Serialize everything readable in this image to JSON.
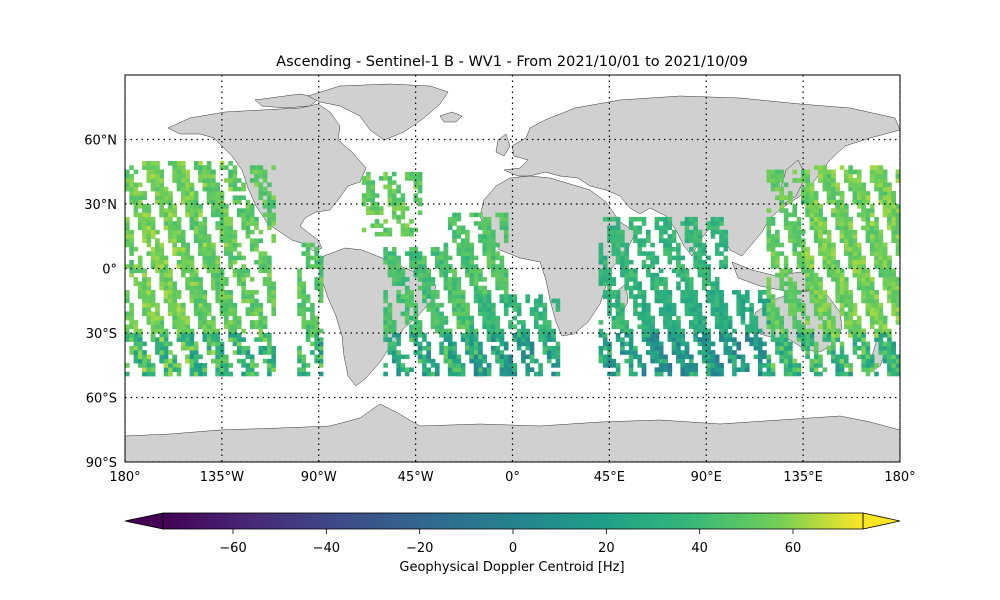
{
  "map": {
    "title": "Ascending - Sentinel-1 B - WV1 - From 2021/10/01 to 2021/10/09",
    "projection": "equirectangular",
    "lon_range": [
      -180,
      180
    ],
    "lat_range": [
      -90,
      90
    ],
    "land_color": "#d0d0d0",
    "coastline_color": "#333333",
    "gridlines": "dotted",
    "lon_ticks": [
      {
        "value": -180,
        "label": "180°"
      },
      {
        "value": -135,
        "label": "135°W"
      },
      {
        "value": -90,
        "label": "90°W"
      },
      {
        "value": -45,
        "label": "45°W"
      },
      {
        "value": 0,
        "label": "0°"
      },
      {
        "value": 45,
        "label": "45°E"
      },
      {
        "value": 90,
        "label": "90°E"
      },
      {
        "value": 135,
        "label": "135°E"
      },
      {
        "value": 180,
        "label": "180°"
      }
    ],
    "lat_ticks": [
      {
        "value": 60,
        "label": "60°N"
      },
      {
        "value": 30,
        "label": "30°N"
      },
      {
        "value": 0,
        "label": "0°"
      },
      {
        "value": -30,
        "label": "30°S"
      },
      {
        "value": -60,
        "label": "60°S"
      },
      {
        "value": -90,
        "label": "90°S"
      }
    ],
    "colorbar": {
      "label": "Geophysical Doppler Centroid [Hz]",
      "colormap": "viridis",
      "range": [
        -75,
        75
      ],
      "extend": "both",
      "ticks": [
        -60,
        -40,
        -20,
        0,
        20,
        40,
        60
      ],
      "tick_labels": [
        "−60",
        "−40",
        "−20",
        "0",
        "20",
        "40",
        "60"
      ]
    },
    "observation_lat_range": [
      -50,
      50
    ],
    "cell_size_deg": [
      2,
      2
    ]
  },
  "chart_data": {
    "type": "heatmap",
    "title": "Ascending - Sentinel-1 B - WV1 - From 2021/10/01 to 2021/10/09",
    "xlabel": "",
    "ylabel": "",
    "value_label": "Geophysical Doppler Centroid [Hz]",
    "xlim": [
      -180,
      180
    ],
    "ylim": [
      -90,
      90
    ],
    "value_range": [
      -75,
      75
    ],
    "swath_bands": [
      {
        "lon_range": [
          -180,
          -146
        ],
        "lat_range": [
          -50,
          50
        ],
        "typical_value": 62
      },
      {
        "lon_range": [
          -172,
          -130
        ],
        "lat_range": [
          -50,
          50
        ],
        "typical_value": 65
      },
      {
        "lon_range": [
          -150,
          -110
        ],
        "lat_range": [
          -50,
          48
        ],
        "typical_value": 60
      },
      {
        "lon_range": [
          -100,
          -88
        ],
        "lat_range": [
          -50,
          12
        ],
        "typical_value": 58
      },
      {
        "lon_range": [
          -70,
          -42
        ],
        "lat_range": [
          15,
          45
        ],
        "typical_value": 60
      },
      {
        "lon_range": [
          -60,
          -18
        ],
        "lat_range": [
          -50,
          10
        ],
        "typical_value": 52
      },
      {
        "lon_range": [
          -32,
          -2
        ],
        "lat_range": [
          -50,
          26
        ],
        "typical_value": 55
      },
      {
        "lon_range": [
          -20,
          22
        ],
        "lat_range": [
          -50,
          -12
        ],
        "typical_value": 45
      },
      {
        "lon_range": [
          40,
          100
        ],
        "lat_range": [
          -50,
          24
        ],
        "typical_value": 45
      },
      {
        "lon_range": [
          60,
          120
        ],
        "lat_range": [
          -50,
          -10
        ],
        "typical_value": 38
      },
      {
        "lon_range": [
          118,
          180
        ],
        "lat_range": [
          -50,
          45
        ],
        "typical_value": 60
      },
      {
        "lon_range": [
          136,
          180
        ],
        "lat_range": [
          -32,
          48
        ],
        "typical_value": 64
      }
    ]
  }
}
